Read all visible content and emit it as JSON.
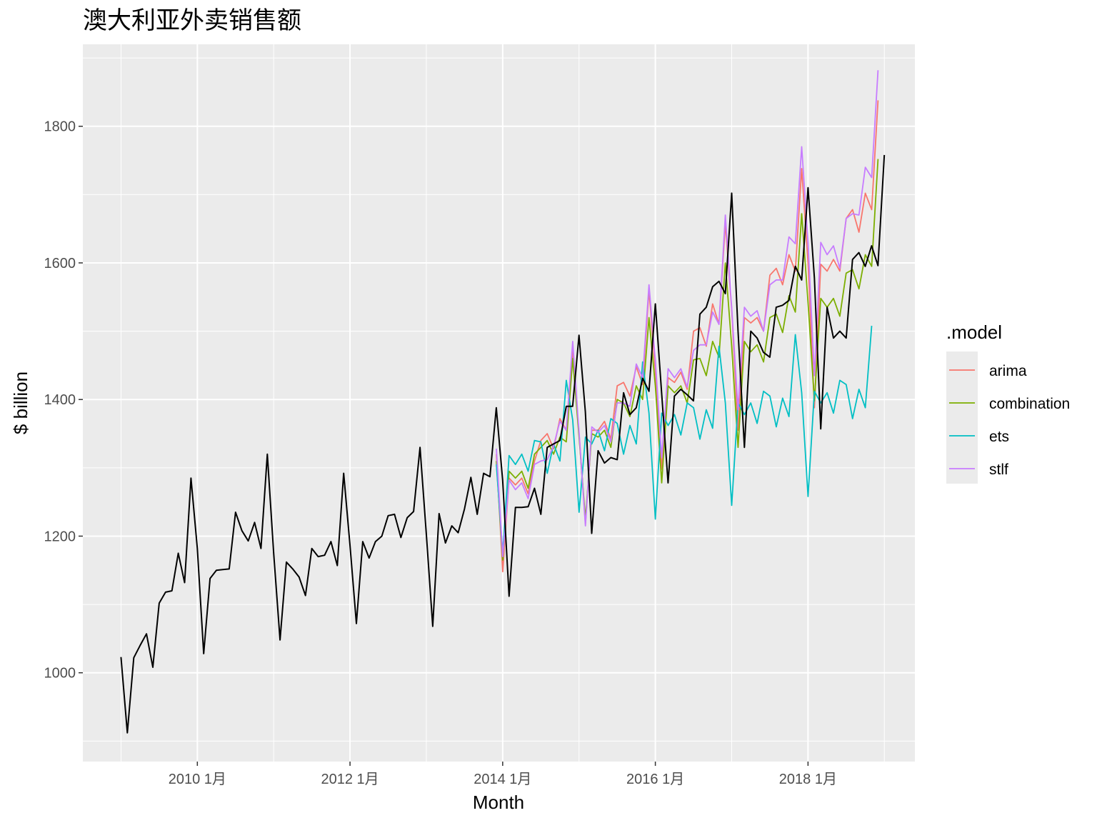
{
  "chart_data": {
    "type": "line",
    "title": "澳大利亚外卖销售额",
    "xlabel": "Month",
    "ylabel": "$ billion",
    "x_ticks": [
      "2010 1月",
      "2012 1月",
      "2014 1月",
      "2016 1月",
      "2018 1月"
    ],
    "y_ticks": [
      "1000",
      "1200",
      "1400",
      "1600",
      "1800"
    ],
    "ylim": [
      870,
      1920
    ],
    "xlim": [
      2008.5,
      2019.4
    ],
    "grid": true,
    "legend": {
      "title": ".model",
      "position": "right"
    },
    "actual": {
      "start": 2009.0,
      "values": [
        1023,
        912,
        1022,
        1040,
        1057,
        1008,
        1102,
        1118,
        1120,
        1175,
        1132,
        1285,
        1182,
        1028,
        1138,
        1150,
        1151,
        1152,
        1235,
        1208,
        1193,
        1220,
        1182,
        1320,
        1175,
        1048,
        1162,
        1152,
        1140,
        1113,
        1182,
        1170,
        1172,
        1192,
        1157,
        1292,
        1186,
        1072,
        1192,
        1168,
        1192,
        1200,
        1230,
        1232,
        1198,
        1227,
        1236,
        1330,
        1202,
        1068,
        1233,
        1190,
        1215,
        1205,
        1240,
        1286,
        1232,
        1292,
        1287,
        1388,
        1282,
        1112,
        1242,
        1242,
        1243,
        1270,
        1232,
        1330,
        1335,
        1340,
        1390,
        1390,
        1494,
        1382,
        1204,
        1325,
        1307,
        1315,
        1312,
        1410,
        1378,
        1388,
        1431,
        1412,
        1540,
        1408,
        1278,
        1405,
        1415,
        1407,
        1398,
        1525,
        1535,
        1565,
        1573,
        1555,
        1702,
        1500,
        1330,
        1500,
        1490,
        1469,
        1462,
        1535,
        1538,
        1545,
        1595,
        1575,
        1710,
        1578,
        1357,
        1535,
        1490,
        1500,
        1490,
        1605,
        1615,
        1595,
        1625,
        1596,
        1758
      ]
    },
    "forecast_x": [
      "2014 1月 … 2018 12月"
    ],
    "series": [
      {
        "name": "arima",
        "color": "#F8766D",
        "start": 2013.917,
        "values": [
          1320,
          1148,
          1285,
          1275,
          1285,
          1262,
          1310,
          1340,
          1350,
          1328,
          1372,
          1355,
          1470,
          1350,
          1218,
          1355,
          1355,
          1368,
          1342,
          1420,
          1425,
          1405,
          1448,
          1422,
          1560,
          1442,
          1298,
          1432,
          1425,
          1440,
          1415,
          1500,
          1505,
          1478,
          1540,
          1510,
          1658,
          1532,
          1355,
          1520,
          1512,
          1520,
          1500,
          1582,
          1592,
          1568,
          1612,
          1588,
          1738,
          1600,
          1388,
          1598,
          1588,
          1605,
          1588,
          1665,
          1678,
          1645,
          1702,
          1678,
          1838
        ]
      },
      {
        "name": "combination",
        "color": "#7CAE00",
        "start": 2013.917,
        "values": [
          1310,
          1165,
          1295,
          1285,
          1295,
          1270,
          1320,
          1330,
          1340,
          1320,
          1345,
          1338,
          1460,
          1345,
          1225,
          1350,
          1345,
          1355,
          1330,
          1400,
          1395,
          1375,
          1420,
          1400,
          1520,
          1420,
          1278,
          1420,
          1410,
          1420,
          1395,
          1458,
          1460,
          1435,
          1485,
          1462,
          1600,
          1478,
          1330,
          1485,
          1470,
          1480,
          1455,
          1520,
          1525,
          1498,
          1552,
          1528,
          1672,
          1542,
          1398,
          1548,
          1535,
          1548,
          1522,
          1585,
          1590,
          1562,
          1612,
          1595,
          1752
        ]
      },
      {
        "name": "ets",
        "color": "#00BFC4",
        "start": 2013.917,
        "values": [
          1305,
          1175,
          1318,
          1305,
          1320,
          1295,
          1340,
          1338,
          1292,
          1335,
          1310,
          1428,
          1370,
          1235,
          1345,
          1335,
          1355,
          1325,
          1372,
          1365,
          1320,
          1362,
          1335,
          1455,
          1380,
          1225,
          1380,
          1362,
          1378,
          1348,
          1395,
          1388,
          1342,
          1385,
          1358,
          1478,
          1395,
          1245,
          1395,
          1378,
          1395,
          1365,
          1412,
          1405,
          1360,
          1402,
          1375,
          1495,
          1410,
          1258,
          1412,
          1395,
          1410,
          1380,
          1428,
          1422,
          1372,
          1415,
          1388,
          1508
        ]
      },
      {
        "name": "stlf",
        "color": "#C77CFF",
        "start": 2013.917,
        "values": [
          1328,
          1170,
          1282,
          1268,
          1278,
          1255,
          1305,
          1310,
          1312,
          1332,
          1368,
          1355,
          1485,
          1352,
          1215,
          1360,
          1352,
          1362,
          1338,
          1395,
          1395,
          1390,
          1452,
          1432,
          1568,
          1458,
          1315,
          1445,
          1432,
          1445,
          1418,
          1472,
          1480,
          1480,
          1528,
          1510,
          1670,
          1535,
          1385,
          1535,
          1522,
          1530,
          1500,
          1568,
          1575,
          1575,
          1638,
          1628,
          1770,
          1630,
          1435,
          1630,
          1612,
          1625,
          1592,
          1665,
          1672,
          1670,
          1740,
          1725,
          1882
        ]
      }
    ]
  }
}
